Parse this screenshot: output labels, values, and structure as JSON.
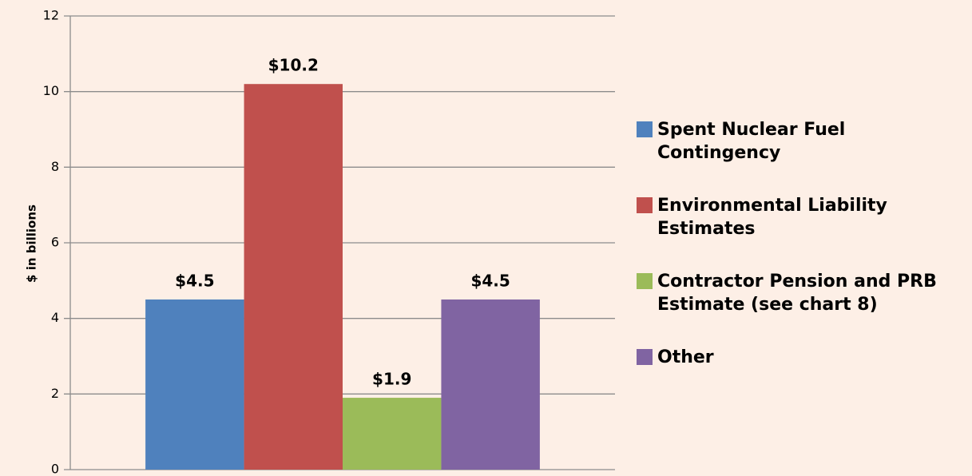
{
  "chart_data": {
    "type": "bar",
    "ylabel": "$ in billions",
    "categories": [
      null
    ],
    "series": [
      {
        "name": "Spent Nuclear Fuel Contingency",
        "color": "#4f81bd",
        "values": [
          4.5
        ],
        "value_labels": [
          "$4.5"
        ]
      },
      {
        "name": "Environmental Liability Estimates",
        "color": "#c0504d",
        "values": [
          10.2
        ],
        "value_labels": [
          "$10.2"
        ]
      },
      {
        "name": "Contractor Pension and PRB Estimate (see chart 8)",
        "color": "#9bbb59",
        "values": [
          1.9
        ],
        "value_labels": [
          "$1.9"
        ]
      },
      {
        "name": "Other",
        "color": "#8064a2",
        "values": [
          4.5
        ],
        "value_labels": [
          "$4.5"
        ]
      }
    ],
    "ylim": [
      0,
      12
    ],
    "yticks": [
      0,
      2,
      4,
      6,
      8,
      10,
      12
    ],
    "grid": true,
    "legend": "right"
  }
}
